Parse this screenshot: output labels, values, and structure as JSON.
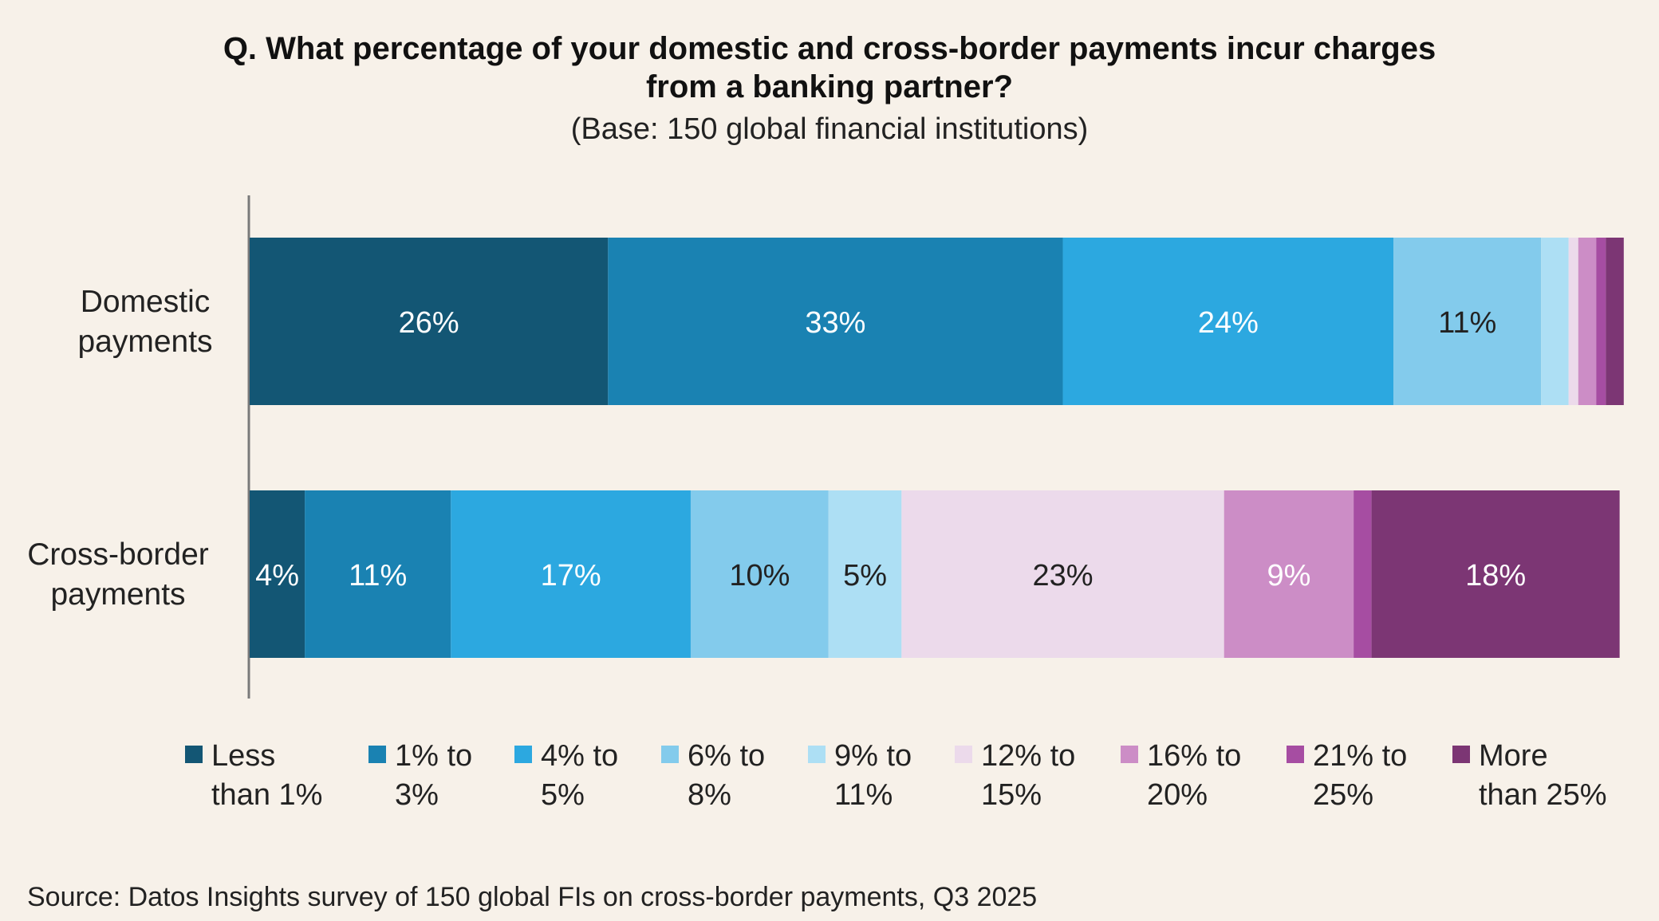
{
  "chart_data": {
    "type": "bar",
    "orientation": "horizontal",
    "stacked": true,
    "title": "Q. What percentage of your domestic and cross-border payments incur charges from a banking partner?",
    "title_lines": [
      "Q. What percentage of your domestic and cross-border payments incur charges",
      "from a banking partner?"
    ],
    "subtitle": "(Base: 150 global financial institutions)",
    "source": "Source: Datos Insights survey of 150 global FIs on cross-border payments, Q3 2025",
    "xlim": [
      0,
      100
    ],
    "categories": [
      {
        "name": "Domestic payments",
        "label_lines": [
          "Domestic",
          "payments"
        ]
      },
      {
        "name": "Cross-border payments",
        "label_lines": [
          "Cross-border",
          "payments"
        ]
      }
    ],
    "series": [
      {
        "name": "Less than 1%",
        "label_lines": [
          "Less",
          "than 1%"
        ],
        "color": "#135674",
        "values": [
          26,
          4
        ],
        "labels": [
          "26%",
          "4%"
        ],
        "text_color": "#ffffff"
      },
      {
        "name": "1% to 3%",
        "label_lines": [
          "1% to",
          "3%"
        ],
        "color": "#1a82b2",
        "values": [
          33,
          10.6
        ],
        "labels": [
          "33%",
          "11%"
        ],
        "text_color": "#ffffff"
      },
      {
        "name": "4% to 5%",
        "label_lines": [
          "4% to",
          "5%"
        ],
        "color": "#2ca8e0",
        "values": [
          24,
          17.4
        ],
        "labels": [
          "24%",
          "17%"
        ],
        "text_color": "#ffffff"
      },
      {
        "name": "6% to 8%",
        "label_lines": [
          "6% to",
          "8%"
        ],
        "color": "#83cbec",
        "values": [
          10.7,
          10
        ],
        "labels": [
          "11%",
          "10%"
        ],
        "text_color": "#222222"
      },
      {
        "name": "9% to 11%",
        "label_lines": [
          "9% to",
          "11%"
        ],
        "color": "#addff4",
        "values": [
          2,
          5.3
        ],
        "labels": [
          "",
          "5%"
        ],
        "text_color": "#222222"
      },
      {
        "name": "12% to 15%",
        "label_lines": [
          "12% to",
          "15%"
        ],
        "color": "#ecdaeb",
        "values": [
          0.7,
          23.4
        ],
        "labels": [
          "",
          "23%"
        ],
        "text_color": "#222222"
      },
      {
        "name": "16% to 20%",
        "label_lines": [
          "16% to",
          "20%"
        ],
        "color": "#cc8dc6",
        "values": [
          1.3,
          9.4
        ],
        "labels": [
          "",
          "9%"
        ],
        "text_color": "#ffffff"
      },
      {
        "name": "21% to 25%",
        "label_lines": [
          "21% to",
          "25%"
        ],
        "color": "#a64da2",
        "values": [
          0.7,
          1.3
        ],
        "labels": [
          "",
          ""
        ],
        "text_color": "#ffffff"
      },
      {
        "name": "More than 25%",
        "label_lines": [
          "More",
          "than 25%"
        ],
        "color": "#7c3674",
        "values": [
          1.3,
          18
        ],
        "labels": [
          "",
          "18%"
        ],
        "text_color": "#ffffff"
      }
    ]
  }
}
